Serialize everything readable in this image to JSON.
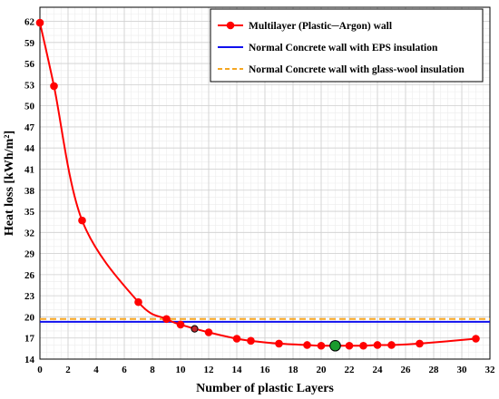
{
  "chart_data": {
    "type": "line",
    "xlabel": "Number of plastic Layers",
    "ylabel": "Heat loss  [kWh/m²]",
    "xlim": [
      0,
      32
    ],
    "ylim": [
      14,
      64
    ],
    "xticks": [
      0,
      2,
      4,
      6,
      8,
      10,
      12,
      14,
      16,
      18,
      20,
      22,
      24,
      26,
      28,
      30,
      32
    ],
    "yticks": [
      14,
      17,
      20,
      23,
      26,
      29,
      32,
      35,
      38,
      41,
      44,
      47,
      50,
      53,
      56,
      59,
      62
    ],
    "grid": true,
    "legend_position": "top-right",
    "series": [
      {
        "name": "Multilayer (Plastic─Argon) wall",
        "style": "line-markers",
        "color": "#ff0000",
        "x": [
          0,
          1,
          3,
          7,
          9,
          10,
          12,
          14,
          15,
          17,
          19,
          20,
          22,
          23,
          24,
          25,
          27,
          31
        ],
        "y": [
          61.8,
          52.8,
          33.7,
          22.1,
          19.7,
          18.9,
          17.8,
          16.9,
          16.6,
          16.2,
          16.0,
          15.9,
          15.9,
          15.9,
          16.0,
          16.0,
          16.2,
          16.9
        ]
      },
      {
        "name": "Normal Concrete wall with EPS insulation",
        "style": "hline",
        "color": "#1010ee",
        "value": 19.3
      },
      {
        "name": "Normal Concrete wall with glass-wool insulation",
        "style": "hline-dashed",
        "color": "#f5a623",
        "value": 19.7
      }
    ],
    "highlight_points": [
      {
        "x": 11,
        "y": 18.3,
        "color": "#c0282d"
      },
      {
        "x": 21,
        "y": 15.9,
        "color": "#1a9b2e"
      }
    ]
  }
}
